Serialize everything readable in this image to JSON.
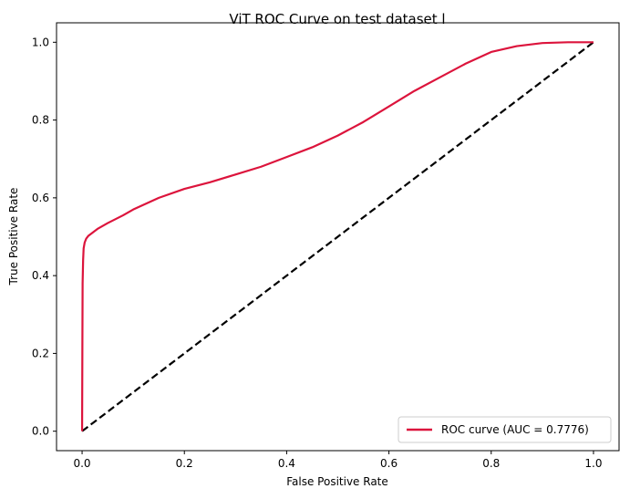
{
  "chart_data": {
    "type": "line",
    "title": "ViT ROC Curve on test dataset l",
    "xlabel": "False Positive Rate",
    "ylabel": "True Positive Rate",
    "xlim": [
      -0.05,
      1.05
    ],
    "ylim": [
      -0.05,
      1.05
    ],
    "xticks": [
      "0.0",
      "0.2",
      "0.4",
      "0.6",
      "0.8",
      "1.0"
    ],
    "yticks": [
      "0.0",
      "0.2",
      "0.4",
      "0.6",
      "0.8",
      "1.0"
    ],
    "grid": false,
    "legend_position": "lower-right",
    "series": [
      {
        "name": "ROC curve (AUC = 0.7776)",
        "color": "#dc143c",
        "style": "solid",
        "x": [
          0.0,
          0.0005,
          0.001,
          0.002,
          0.003,
          0.005,
          0.008,
          0.012,
          0.02,
          0.03,
          0.05,
          0.08,
          0.1,
          0.15,
          0.2,
          0.25,
          0.3,
          0.35,
          0.4,
          0.45,
          0.5,
          0.55,
          0.6,
          0.65,
          0.7,
          0.75,
          0.8,
          0.85,
          0.9,
          0.95,
          1.0
        ],
        "y": [
          0.0,
          0.2,
          0.38,
          0.44,
          0.47,
          0.485,
          0.495,
          0.502,
          0.51,
          0.52,
          0.535,
          0.555,
          0.57,
          0.6,
          0.623,
          0.64,
          0.66,
          0.68,
          0.705,
          0.73,
          0.76,
          0.795,
          0.835,
          0.875,
          0.91,
          0.945,
          0.975,
          0.99,
          0.998,
          1.0,
          1.0
        ]
      },
      {
        "name": "",
        "color": "#000000",
        "style": "dashed",
        "x": [
          0.0,
          1.0
        ],
        "y": [
          0.0,
          1.0
        ]
      }
    ]
  }
}
